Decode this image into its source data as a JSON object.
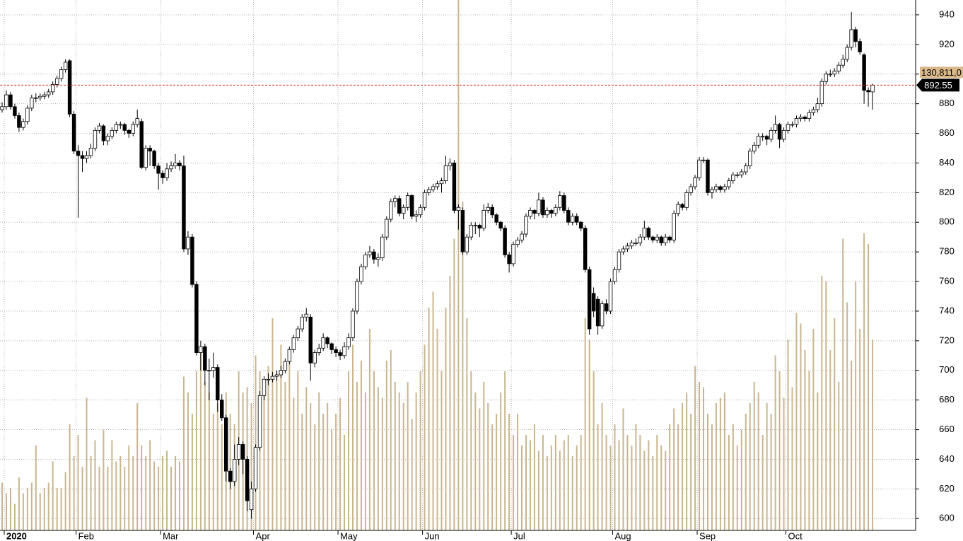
{
  "chart_data": {
    "type": "candlestick",
    "candles": [
      [
        876,
        881,
        874,
        878
      ],
      [
        878,
        889,
        876,
        886
      ],
      [
        886,
        888,
        876,
        878
      ],
      [
        878,
        880,
        870,
        872
      ],
      [
        872,
        874,
        861,
        864
      ],
      [
        864,
        870,
        862,
        868
      ],
      [
        868,
        879,
        866,
        877
      ],
      [
        877,
        886,
        875,
        884
      ],
      [
        884,
        887,
        881,
        884
      ],
      [
        884,
        887,
        882,
        885
      ],
      [
        885,
        888,
        883,
        886
      ],
      [
        886,
        890,
        884,
        888
      ],
      [
        888,
        895,
        886,
        893
      ],
      [
        893,
        899,
        891,
        897
      ],
      [
        897,
        905,
        895,
        903
      ],
      [
        903,
        910,
        901,
        908
      ],
      [
        909,
        910,
        871,
        873
      ],
      [
        873,
        875,
        846,
        848
      ],
      [
        848,
        852,
        803,
        845
      ],
      [
        845,
        848,
        834,
        843
      ],
      [
        843,
        848,
        840,
        845
      ],
      [
        845,
        853,
        843,
        850
      ],
      [
        850,
        864,
        848,
        862
      ],
      [
        862,
        867,
        860,
        865
      ],
      [
        865,
        866,
        852,
        855
      ],
      [
        855,
        860,
        852,
        858
      ],
      [
        858,
        864,
        856,
        862
      ],
      [
        862,
        868,
        860,
        866
      ],
      [
        866,
        868,
        863,
        866
      ],
      [
        866,
        867,
        859,
        862
      ],
      [
        862,
        863,
        857,
        860
      ],
      [
        860,
        868,
        858,
        866
      ],
      [
        866,
        876,
        864,
        870
      ],
      [
        868,
        870,
        836,
        837
      ],
      [
        837,
        852,
        835,
        850
      ],
      [
        850,
        852,
        838,
        848
      ],
      [
        848,
        849,
        836,
        838
      ],
      [
        838,
        840,
        822,
        833
      ],
      [
        833,
        835,
        826,
        830
      ],
      [
        830,
        840,
        828,
        836
      ],
      [
        836,
        841,
        834,
        838
      ],
      [
        838,
        846,
        836,
        840
      ],
      [
        840,
        842,
        835,
        838
      ],
      [
        838,
        845,
        780,
        782
      ],
      [
        782,
        794,
        778,
        790
      ],
      [
        790,
        792,
        756,
        758
      ],
      [
        758,
        760,
        710,
        712
      ],
      [
        712,
        720,
        700,
        716
      ],
      [
        716,
        718,
        690,
        700
      ],
      [
        700,
        708,
        680,
        700
      ],
      [
        700,
        712,
        695,
        702
      ],
      [
        702,
        704,
        672,
        680
      ],
      [
        680,
        684,
        666,
        668
      ],
      [
        668,
        670,
        625,
        632
      ],
      [
        632,
        634,
        620,
        625
      ],
      [
        625,
        650,
        622,
        640
      ],
      [
        640,
        655,
        636,
        650
      ],
      [
        650,
        652,
        630,
        640
      ],
      [
        640,
        642,
        605,
        612
      ],
      [
        606,
        625,
        600,
        620
      ],
      [
        620,
        650,
        618,
        648
      ],
      [
        648,
        686,
        646,
        683
      ],
      [
        683,
        696,
        680,
        694
      ],
      [
        694,
        698,
        690,
        694
      ],
      [
        694,
        699,
        692,
        696
      ],
      [
        696,
        700,
        693,
        697
      ],
      [
        697,
        703,
        695,
        700
      ],
      [
        700,
        708,
        698,
        706
      ],
      [
        706,
        716,
        704,
        714
      ],
      [
        714,
        724,
        712,
        722
      ],
      [
        722,
        730,
        720,
        728
      ],
      [
        728,
        738,
        726,
        736
      ],
      [
        736,
        742,
        733,
        738
      ],
      [
        736,
        738,
        693,
        705
      ],
      [
        705,
        714,
        702,
        712
      ],
      [
        712,
        718,
        710,
        715
      ],
      [
        715,
        725,
        713,
        722
      ],
      [
        722,
        723,
        715,
        718
      ],
      [
        718,
        719,
        711,
        714
      ],
      [
        714,
        716,
        709,
        712
      ],
      [
        712,
        714,
        707,
        710
      ],
      [
        710,
        719,
        708,
        716
      ],
      [
        716,
        725,
        714,
        722
      ],
      [
        722,
        742,
        720,
        740
      ],
      [
        740,
        762,
        738,
        760
      ],
      [
        760,
        772,
        758,
        770
      ],
      [
        770,
        780,
        768,
        778
      ],
      [
        778,
        784,
        776,
        780
      ],
      [
        780,
        782,
        772,
        775
      ],
      [
        775,
        779,
        770,
        776
      ],
      [
        776,
        792,
        774,
        790
      ],
      [
        790,
        804,
        788,
        802
      ],
      [
        802,
        816,
        800,
        814
      ],
      [
        814,
        818,
        810,
        816
      ],
      [
        816,
        818,
        804,
        806
      ],
      [
        806,
        812,
        802,
        810
      ],
      [
        810,
        820,
        808,
        818
      ],
      [
        818,
        819,
        802,
        804
      ],
      [
        804,
        808,
        800,
        805
      ],
      [
        805,
        812,
        803,
        810
      ],
      [
        810,
        822,
        808,
        820
      ],
      [
        820,
        824,
        818,
        822
      ],
      [
        822,
        826,
        820,
        824
      ],
      [
        824,
        828,
        822,
        826
      ],
      [
        826,
        830,
        820,
        828
      ],
      [
        828,
        845,
        826,
        838
      ],
      [
        838,
        843,
        835,
        840
      ],
      [
        840,
        842,
        806,
        808
      ],
      [
        808,
        812,
        795,
        810
      ],
      [
        808,
        810,
        778,
        780
      ],
      [
        780,
        792,
        778,
        790
      ],
      [
        790,
        800,
        788,
        798
      ],
      [
        798,
        800,
        792,
        798
      ],
      [
        798,
        799,
        790,
        796
      ],
      [
        796,
        812,
        794,
        808
      ],
      [
        808,
        813,
        806,
        810
      ],
      [
        810,
        812,
        803,
        805
      ],
      [
        805,
        806,
        798,
        800
      ],
      [
        800,
        801,
        794,
        796
      ],
      [
        796,
        798,
        776,
        778
      ],
      [
        778,
        780,
        766,
        772
      ],
      [
        772,
        787,
        770,
        785
      ],
      [
        785,
        790,
        783,
        788
      ],
      [
        788,
        794,
        786,
        792
      ],
      [
        792,
        806,
        790,
        804
      ],
      [
        804,
        810,
        802,
        808
      ],
      [
        808,
        809,
        802,
        806
      ],
      [
        806,
        820,
        804,
        815
      ],
      [
        815,
        817,
        803,
        805
      ],
      [
        805,
        810,
        803,
        808
      ],
      [
        808,
        809,
        803,
        806
      ],
      [
        806,
        812,
        804,
        810
      ],
      [
        810,
        821,
        808,
        818
      ],
      [
        818,
        820,
        806,
        808
      ],
      [
        808,
        810,
        798,
        800
      ],
      [
        800,
        806,
        798,
        804
      ],
      [
        804,
        806,
        798,
        800
      ],
      [
        800,
        801,
        794,
        796
      ],
      [
        796,
        798,
        766,
        768
      ],
      [
        768,
        770,
        724,
        728
      ],
      [
        752,
        756,
        736,
        740
      ],
      [
        748,
        750,
        724,
        730
      ],
      [
        730,
        747,
        728,
        745
      ],
      [
        745,
        748,
        738,
        740
      ],
      [
        740,
        762,
        738,
        760
      ],
      [
        760,
        770,
        758,
        768
      ],
      [
        768,
        782,
        766,
        780
      ],
      [
        780,
        784,
        778,
        782
      ],
      [
        782,
        786,
        780,
        784
      ],
      [
        784,
        788,
        782,
        786
      ],
      [
        786,
        789,
        784,
        786
      ],
      [
        786,
        792,
        784,
        790
      ],
      [
        790,
        801,
        788,
        796
      ],
      [
        796,
        797,
        788,
        790
      ],
      [
        790,
        791,
        786,
        788
      ],
      [
        788,
        792,
        786,
        790
      ],
      [
        790,
        791,
        784,
        786
      ],
      [
        786,
        792,
        784,
        790
      ],
      [
        790,
        791,
        786,
        788
      ],
      [
        788,
        808,
        786,
        806
      ],
      [
        806,
        814,
        804,
        812
      ],
      [
        812,
        813,
        808,
        810
      ],
      [
        810,
        822,
        808,
        820
      ],
      [
        820,
        826,
        818,
        824
      ],
      [
        824,
        832,
        822,
        830
      ],
      [
        830,
        844,
        828,
        842
      ],
      [
        842,
        844,
        840,
        842
      ],
      [
        842,
        843,
        818,
        820
      ],
      [
        820,
        824,
        816,
        822
      ],
      [
        822,
        826,
        820,
        824
      ],
      [
        824,
        825,
        820,
        822
      ],
      [
        822,
        826,
        820,
        824
      ],
      [
        824,
        830,
        822,
        828
      ],
      [
        828,
        834,
        826,
        832
      ],
      [
        832,
        834,
        830,
        832
      ],
      [
        832,
        836,
        830,
        834
      ],
      [
        834,
        840,
        832,
        838
      ],
      [
        838,
        850,
        836,
        848
      ],
      [
        848,
        854,
        846,
        852
      ],
      [
        852,
        860,
        850,
        858
      ],
      [
        858,
        860,
        855,
        858
      ],
      [
        858,
        859,
        852,
        856
      ],
      [
        856,
        864,
        854,
        862
      ],
      [
        862,
        872,
        860,
        866
      ],
      [
        866,
        867,
        850,
        856
      ],
      [
        856,
        864,
        854,
        862
      ],
      [
        862,
        868,
        860,
        866
      ],
      [
        866,
        868,
        864,
        866
      ],
      [
        866,
        872,
        864,
        870
      ],
      [
        870,
        873,
        868,
        871
      ],
      [
        871,
        872,
        868,
        870
      ],
      [
        870,
        876,
        868,
        874
      ],
      [
        874,
        878,
        872,
        876
      ],
      [
        876,
        884,
        874,
        880
      ],
      [
        880,
        897,
        878,
        895
      ],
      [
        895,
        902,
        893,
        900
      ],
      [
        900,
        903,
        898,
        900
      ],
      [
        900,
        904,
        898,
        902
      ],
      [
        902,
        908,
        900,
        906
      ],
      [
        906,
        913,
        904,
        910
      ],
      [
        910,
        920,
        908,
        918
      ],
      [
        918,
        942,
        916,
        930
      ],
      [
        930,
        932,
        918,
        922
      ],
      [
        922,
        924,
        913,
        915
      ],
      [
        913,
        914,
        880,
        889
      ],
      [
        889,
        891,
        878,
        888
      ],
      [
        888,
        893.5,
        876,
        892.55
      ]
    ],
    "volume": [
      9,
      7,
      8,
      5,
      10,
      7,
      8,
      9,
      16,
      7,
      8,
      9,
      13,
      8,
      8,
      11,
      20,
      14,
      18,
      12,
      25,
      14,
      17,
      12,
      19,
      12,
      17,
      13,
      14,
      12,
      16,
      14,
      24,
      16,
      14,
      17,
      13,
      12,
      14,
      15,
      12,
      14,
      13,
      29,
      26,
      22,
      30,
      34,
      28,
      26,
      22,
      24,
      20,
      26,
      22,
      20,
      30,
      26,
      27,
      24,
      33,
      30,
      27,
      31,
      40,
      30,
      35,
      28,
      33,
      25,
      30,
      22,
      27,
      24,
      20,
      26,
      22,
      24,
      19,
      22,
      25,
      18,
      30,
      35,
      28,
      32,
      26,
      38,
      30,
      27,
      25,
      32,
      34,
      28,
      26,
      24,
      28,
      21,
      26,
      30,
      35,
      42,
      45,
      38,
      30,
      42,
      48,
      55,
      100,
      62,
      40,
      30,
      26,
      23,
      28,
      24,
      20,
      22,
      26,
      30,
      22,
      18,
      22,
      16,
      18,
      17,
      20,
      15,
      18,
      14,
      16,
      18,
      15,
      17,
      18,
      14,
      16,
      18,
      40,
      36,
      30,
      20,
      24,
      18,
      16,
      20,
      17,
      23,
      18,
      16,
      20,
      18,
      15,
      17,
      14,
      18,
      16,
      15,
      20,
      23,
      20,
      24,
      26,
      22,
      31,
      28,
      27,
      22,
      20,
      24,
      25,
      26,
      18,
      20,
      16,
      19,
      22,
      24,
      28,
      26,
      18,
      24,
      22,
      33,
      30,
      25,
      36,
      27,
      41,
      39,
      34,
      30,
      38,
      26,
      48,
      47,
      34,
      40,
      28,
      55,
      43,
      32,
      47,
      38,
      56,
      54,
      36
    ],
    "up_color": "#ffffff",
    "down_color": "#000000",
    "volume_color": "#c9b68f",
    "xlim": [
      -0.5,
      216.2
    ],
    "xticks": [
      {
        "value": 0.5,
        "label": "2020"
      },
      {
        "value": 17.5,
        "label": "Feb"
      },
      {
        "value": 37.5,
        "label": "Mar"
      },
      {
        "value": 59.5,
        "label": "Apr"
      },
      {
        "value": 79.5,
        "label": "May"
      },
      {
        "value": 99.5,
        "label": "Jun"
      },
      {
        "value": 120.5,
        "label": "Jul"
      },
      {
        "value": 144.5,
        "label": "Aug"
      },
      {
        "value": 164.5,
        "label": "Sep"
      },
      {
        "value": 185.5,
        "label": "Oct"
      }
    ],
    "ylim": [
      592,
      950
    ],
    "yticks": [
      600,
      620,
      640,
      660,
      680,
      700,
      720,
      740,
      760,
      780,
      800,
      820,
      840,
      860,
      880,
      900,
      920,
      940
    ],
    "y2lim": [
      0,
      100
    ],
    "grid": true,
    "last_price": 892.55,
    "volume_label": "130,811,0"
  }
}
